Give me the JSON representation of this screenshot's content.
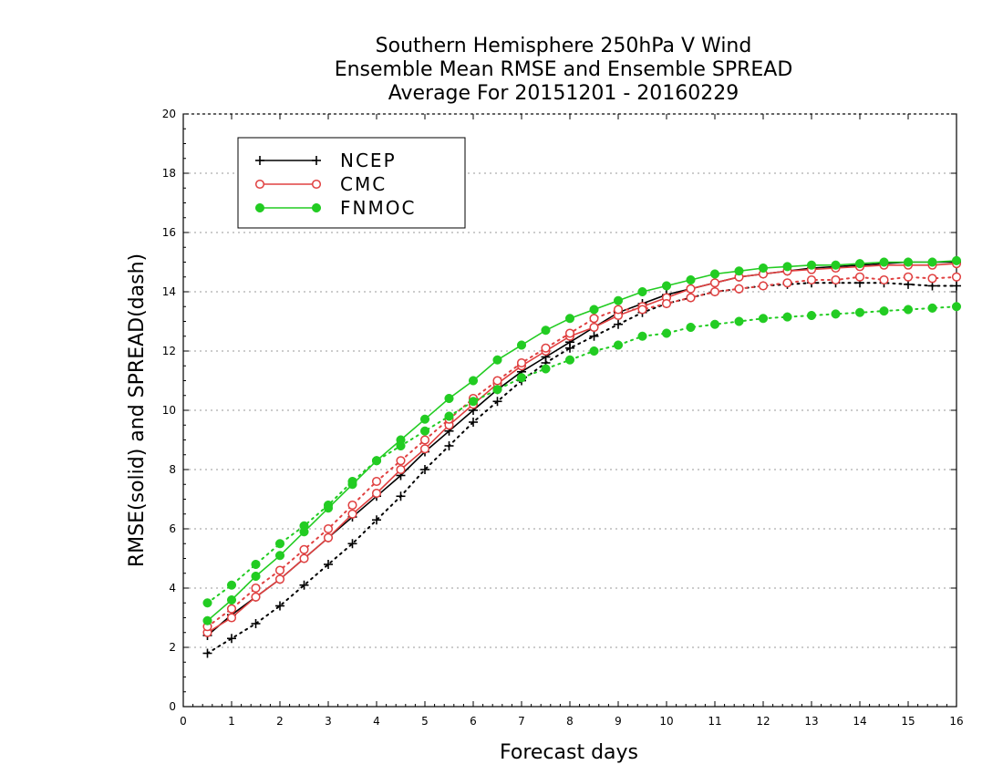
{
  "chart_data": {
    "type": "line",
    "title": [
      "Southern Hemisphere 250hPa V Wind",
      "Ensemble Mean RMSE and Ensemble SPREAD",
      "Average For 20151201 - 20160229"
    ],
    "xlabel": "Forecast days",
    "ylabel": "RMSE(solid) and SPREAD(dash)",
    "xlim": [
      0,
      16
    ],
    "ylim": [
      0,
      20
    ],
    "xticks": [
      "0",
      "1",
      "2",
      "3",
      "4",
      "5",
      "6",
      "7",
      "8",
      "9",
      "10",
      "11",
      "12",
      "13",
      "14",
      "15",
      "16"
    ],
    "yticks": [
      "0",
      "2",
      "4",
      "6",
      "8",
      "10",
      "12",
      "14",
      "16",
      "18",
      "20"
    ],
    "grid": true,
    "legend_position": "top-left",
    "x": [
      0.5,
      1,
      1.5,
      2,
      2.5,
      3,
      3.5,
      4,
      4.5,
      5,
      5.5,
      6,
      6.5,
      7,
      7.5,
      8,
      8.5,
      9,
      9.5,
      10,
      10.5,
      11,
      11.5,
      12,
      12.5,
      13,
      13.5,
      14,
      14.5,
      15,
      15.5,
      16
    ],
    "series": [
      {
        "name": "NCEP",
        "color": "#000000",
        "marker": "plus",
        "rmse": [
          2.4,
          3.1,
          3.7,
          4.3,
          5.0,
          5.7,
          6.4,
          7.1,
          7.8,
          8.6,
          9.3,
          10.0,
          10.7,
          11.3,
          11.8,
          12.3,
          12.8,
          13.3,
          13.6,
          13.9,
          14.1,
          14.3,
          14.5,
          14.6,
          14.7,
          14.8,
          14.85,
          14.9,
          14.95,
          15.0,
          15.0,
          15.0
        ],
        "spread": [
          1.8,
          2.3,
          2.8,
          3.4,
          4.1,
          4.8,
          5.5,
          6.3,
          7.1,
          8.0,
          8.8,
          9.6,
          10.3,
          11.0,
          11.6,
          12.1,
          12.5,
          12.9,
          13.3,
          13.6,
          13.8,
          14.0,
          14.1,
          14.2,
          14.25,
          14.3,
          14.3,
          14.3,
          14.3,
          14.25,
          14.2,
          14.2
        ]
      },
      {
        "name": "CMC",
        "color": "#e04040",
        "marker": "open-circle",
        "rmse": [
          2.5,
          3.0,
          3.7,
          4.3,
          5.0,
          5.7,
          6.5,
          7.2,
          8.0,
          8.7,
          9.5,
          10.2,
          10.9,
          11.5,
          12.0,
          12.5,
          12.8,
          13.2,
          13.5,
          13.8,
          14.1,
          14.3,
          14.5,
          14.6,
          14.7,
          14.75,
          14.8,
          14.85,
          14.9,
          14.9,
          14.9,
          14.95
        ],
        "spread": [
          2.7,
          3.3,
          4.0,
          4.6,
          5.3,
          6.0,
          6.8,
          7.6,
          8.3,
          9.0,
          9.7,
          10.4,
          11.0,
          11.6,
          12.1,
          12.6,
          13.1,
          13.4,
          13.4,
          13.6,
          13.8,
          14.0,
          14.1,
          14.2,
          14.3,
          14.4,
          14.4,
          14.5,
          14.4,
          14.5,
          14.45,
          14.5
        ]
      },
      {
        "name": "FNMOC",
        "color": "#22cc22",
        "marker": "filled-circle",
        "rmse": [
          2.9,
          3.6,
          4.4,
          5.1,
          5.9,
          6.7,
          7.5,
          8.3,
          9.0,
          9.7,
          10.4,
          11.0,
          11.7,
          12.2,
          12.7,
          13.1,
          13.4,
          13.7,
          14.0,
          14.2,
          14.4,
          14.6,
          14.7,
          14.8,
          14.85,
          14.9,
          14.9,
          14.95,
          15.0,
          15.0,
          15.0,
          15.05
        ],
        "spread": [
          3.5,
          4.1,
          4.8,
          5.5,
          6.1,
          6.8,
          7.6,
          8.3,
          8.8,
          9.3,
          9.8,
          10.3,
          10.7,
          11.1,
          11.4,
          11.7,
          12.0,
          12.2,
          12.5,
          12.6,
          12.8,
          12.9,
          13.0,
          13.1,
          13.15,
          13.2,
          13.25,
          13.3,
          13.35,
          13.4,
          13.45,
          13.5
        ]
      }
    ]
  }
}
